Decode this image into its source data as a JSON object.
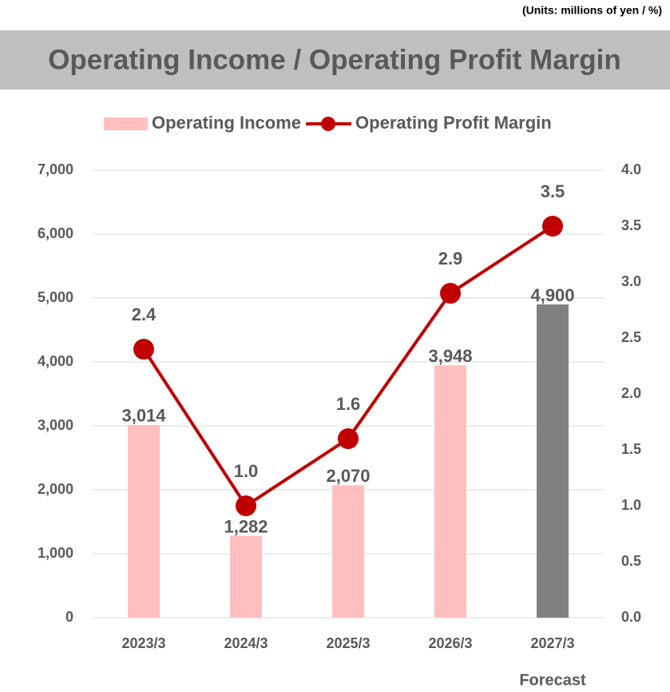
{
  "chart_data": {
    "type": "bar-line",
    "units_note": "(Units: millions of yen / %)",
    "title": "Operating Income / Operating Profit Margin",
    "categories": [
      "2023/3",
      "2024/3",
      "2025/3",
      "2026/3",
      "2027/3"
    ],
    "annotation": "Forecast",
    "series": [
      {
        "name": "Operating Income",
        "type": "bar",
        "color": "#ffbfbf",
        "colors": [
          "#ffbfbf",
          "#ffbfbf",
          "#ffbfbf",
          "#ffbfbf",
          "#808080"
        ],
        "values": [
          3014,
          1282,
          2070,
          3948,
          4900
        ],
        "value_labels": [
          "3,014",
          "1,282",
          "2,070",
          "3,948",
          "4,900"
        ]
      },
      {
        "name": "Operating Profit Margin",
        "type": "line",
        "axis": "y2",
        "color": "#c00000",
        "values": [
          2.4,
          1.0,
          1.6,
          2.9,
          3.5
        ],
        "value_labels": [
          "2.4",
          "1.0",
          "1.6",
          "2.9",
          "3.5"
        ]
      }
    ],
    "ylim": [
      0,
      7000
    ],
    "yticks": [
      0,
      {
        "value": 1000,
        "label": "1,000"
      },
      {
        "value": 2000,
        "label": "2,000"
      },
      {
        "value": 3000,
        "label": "3,000"
      },
      {
        "value": 4000,
        "label": "4,000"
      },
      {
        "value": 5000,
        "label": "5,000"
      },
      {
        "value": 6000,
        "label": "6,000"
      },
      {
        "value": 7000,
        "label": "7,000"
      }
    ],
    "y2lim": [
      0,
      4
    ],
    "y2ticks": [
      {
        "value": 0,
        "label": "0.0"
      },
      0.5,
      {
        "value": 1,
        "label": "1.0"
      },
      1.5,
      {
        "value": 2,
        "label": "2.0"
      },
      2.5,
      {
        "value": 3,
        "label": "3.0"
      },
      3.5,
      {
        "value": 4,
        "label": "4.0"
      }
    ],
    "grid": true,
    "legend": "top"
  }
}
